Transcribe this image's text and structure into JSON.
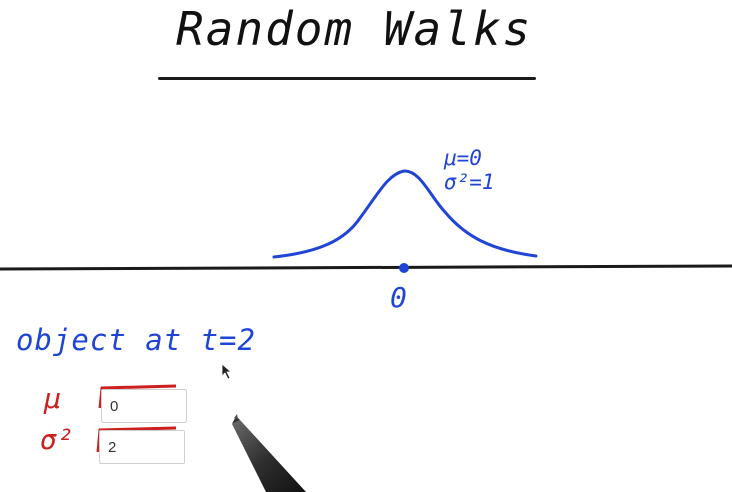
{
  "title": "Random Walks",
  "distribution": {
    "mu_label": "μ=0",
    "sigma_label": "σ²=1",
    "origin_label": "0"
  },
  "question": {
    "text": "object at t=2",
    "mu_symbol": "μ",
    "variance_symbol": "σ²",
    "mu_answer": "0",
    "variance_answer": "2"
  },
  "colors": {
    "ink_blue": "#1f44d6",
    "ink_red": "#cc1f1f",
    "ink_black": "#1a1a1a"
  },
  "icons": [
    "pointer-cursor-icon",
    "stylus-pen-icon"
  ]
}
